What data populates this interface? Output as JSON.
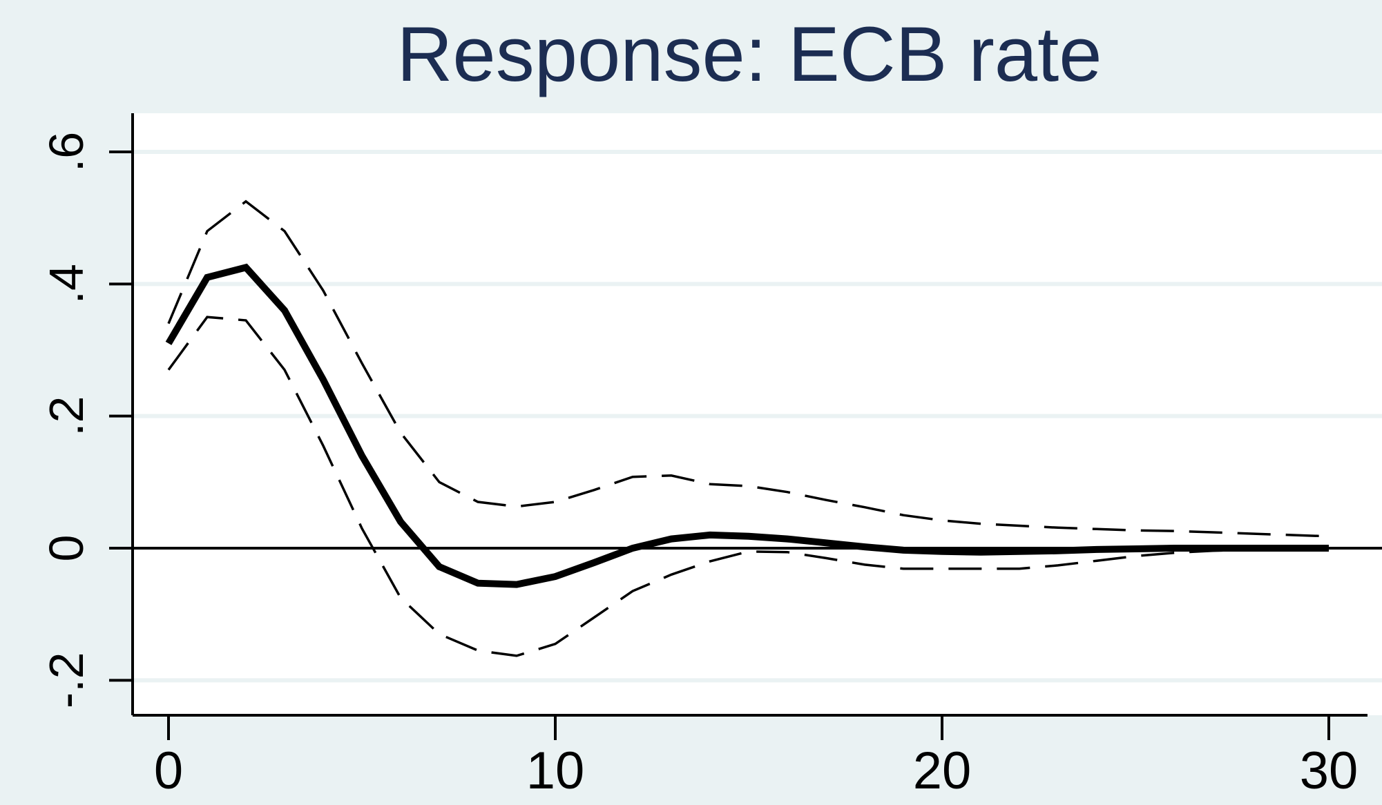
{
  "chart_data": {
    "type": "line",
    "title": "Response: ECB rate",
    "xlabel": "",
    "ylabel": "",
    "xlim": [
      -1,
      31
    ],
    "ylim": [
      -0.25,
      0.65
    ],
    "x_ticks": [
      0,
      10,
      20,
      30
    ],
    "x_tick_labels": [
      "0",
      "10",
      "20",
      "30"
    ],
    "y_ticks": [
      -0.2,
      0,
      0.2,
      0.4,
      0.6
    ],
    "y_tick_labels": [
      "-.2",
      "0",
      ".2",
      ".4",
      ".6"
    ],
    "grid": true,
    "zero_line": true,
    "legend": "none",
    "x": [
      0,
      1,
      2,
      3,
      4,
      5,
      6,
      7,
      8,
      9,
      10,
      11,
      12,
      13,
      14,
      15,
      16,
      17,
      18,
      19,
      20,
      21,
      22,
      23,
      24,
      25,
      26,
      27,
      28,
      29,
      30
    ],
    "series": [
      {
        "style": "solid-thick",
        "values": [
          0.31,
          0.41,
          0.425,
          0.36,
          0.255,
          0.14,
          0.04,
          -0.028,
          -0.053,
          -0.055,
          -0.043,
          -0.022,
          0.0,
          0.014,
          0.02,
          0.018,
          0.014,
          0.008,
          0.002,
          -0.003,
          -0.005,
          -0.006,
          -0.005,
          -0.004,
          -0.002,
          -0.001,
          0.0,
          0.0,
          0.0,
          0.0,
          0.0
        ]
      },
      {
        "style": "dashed",
        "values": [
          0.34,
          0.48,
          0.525,
          0.48,
          0.39,
          0.28,
          0.175,
          0.1,
          0.07,
          0.063,
          0.07,
          0.088,
          0.108,
          0.11,
          0.097,
          0.094,
          0.085,
          0.073,
          0.062,
          0.05,
          0.042,
          0.037,
          0.034,
          0.031,
          0.029,
          0.027,
          0.026,
          0.024,
          0.022,
          0.02,
          0.018
        ]
      },
      {
        "style": "dashed",
        "values": [
          0.27,
          0.35,
          0.345,
          0.27,
          0.155,
          0.03,
          -0.075,
          -0.13,
          -0.155,
          -0.163,
          -0.145,
          -0.105,
          -0.065,
          -0.04,
          -0.02,
          -0.005,
          -0.006,
          -0.015,
          -0.025,
          -0.031,
          -0.031,
          -0.031,
          -0.031,
          -0.026,
          -0.019,
          -0.012,
          -0.007,
          -0.004,
          -0.002,
          -0.001,
          0.0
        ]
      }
    ]
  }
}
